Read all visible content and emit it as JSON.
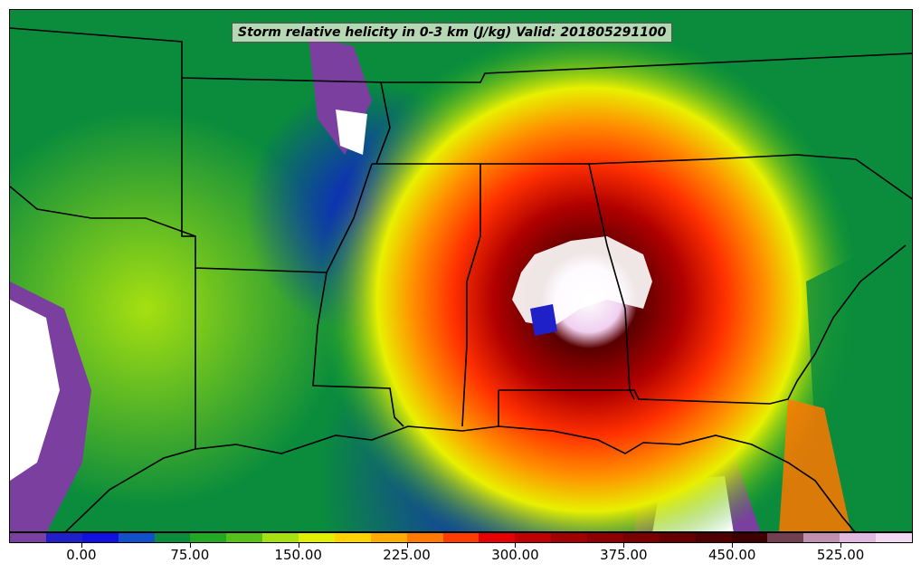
{
  "map": {
    "title": "Storm relative helicity in 0-3 km (J/kg) Valid: 201805291100"
  },
  "colorbar": {
    "colors": [
      "#7b3fa0",
      "#2020c8",
      "#1010e0",
      "#1050c8",
      "#0a8c3c",
      "#22a822",
      "#55c21c",
      "#a6e010",
      "#e0f000",
      "#ffd200",
      "#ffaa00",
      "#ff7800",
      "#ff3c00",
      "#e60000",
      "#c00000",
      "#a00000",
      "#8c0000",
      "#780000",
      "#640000",
      "#500000",
      "#3c0000",
      "#704050",
      "#c090b0",
      "#e0b8e0",
      "#f2d8f2"
    ],
    "tick_labels": [
      "0.00",
      "75.00",
      "150.00",
      "225.00",
      "300.00",
      "375.00",
      "450.00",
      "525.00"
    ],
    "tick_values": [
      0,
      75,
      150,
      225,
      300,
      375,
      450,
      525
    ],
    "vmin": -50,
    "vmax": 575
  },
  "legend_units": "J/kg"
}
